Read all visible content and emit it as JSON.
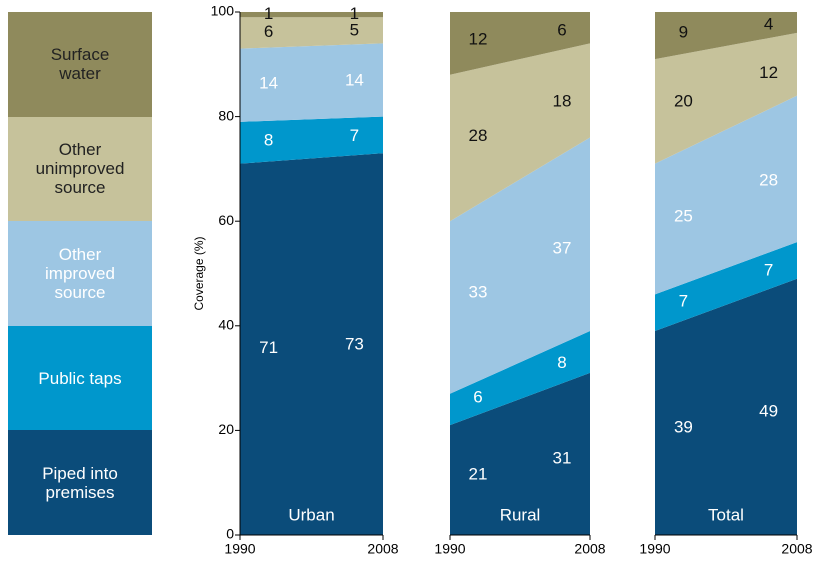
{
  "chart_data": [
    {
      "type": "area",
      "title": "Urban",
      "ylabel": "Coverage (%)",
      "x": [
        1990,
        2008
      ],
      "xlim": [
        1990,
        2008
      ],
      "xticks": [
        1990,
        2008
      ],
      "ylim": [
        0,
        100
      ],
      "yticks": [
        0,
        20,
        40,
        60,
        80,
        100
      ],
      "series": [
        {
          "name": "Piped into premises",
          "color": "#0b4c7a",
          "values": [
            71,
            73
          ]
        },
        {
          "name": "Public taps",
          "color": "#0097cc",
          "values": [
            8,
            7
          ]
        },
        {
          "name": "Other improved source",
          "color": "#9dc6e3",
          "values": [
            14,
            14
          ]
        },
        {
          "name": "Other unimproved source",
          "color": "#c6c29b",
          "values": [
            6,
            5
          ]
        },
        {
          "name": "Surface water",
          "color": "#8f8a5c",
          "values": [
            1,
            1
          ]
        }
      ]
    },
    {
      "type": "area",
      "title": "Rural",
      "x": [
        1990,
        2008
      ],
      "xlim": [
        1990,
        2008
      ],
      "xticks": [
        1990,
        2008
      ],
      "ylim": [
        0,
        100
      ],
      "series": [
        {
          "values": [
            21,
            31
          ]
        },
        {
          "values": [
            6,
            8
          ]
        },
        {
          "values": [
            33,
            37
          ]
        },
        {
          "values": [
            28,
            18
          ]
        },
        {
          "values": [
            12,
            6
          ]
        }
      ]
    },
    {
      "type": "area",
      "title": "Total",
      "x": [
        1990,
        2008
      ],
      "xlim": [
        1990,
        2008
      ],
      "xticks": [
        1990,
        2008
      ],
      "ylim": [
        0,
        100
      ],
      "series": [
        {
          "values": [
            39,
            49
          ]
        },
        {
          "values": [
            7,
            7
          ]
        },
        {
          "values": [
            25,
            28
          ]
        },
        {
          "values": [
            20,
            12
          ]
        },
        {
          "values": [
            9,
            4
          ]
        }
      ]
    }
  ]
}
